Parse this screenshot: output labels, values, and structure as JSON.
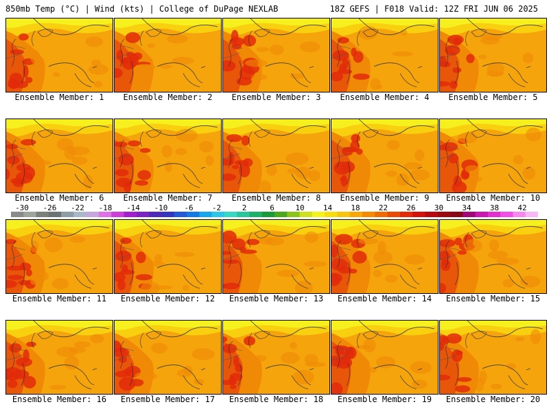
{
  "header": {
    "left": "850mb Temp (°C) | Wind (kts) | College of DuPage NEXLAB",
    "right": "18Z GEFS | F018 Valid: 12Z FRI JUN 06 2025"
  },
  "panels": [
    "Ensemble Member: 1",
    "Ensemble Member: 2",
    "Ensemble Member: 3",
    "Ensemble Member: 4",
    "Ensemble Member: 5",
    "Ensemble Member: 6",
    "Ensemble Member: 7",
    "Ensemble Member: 8",
    "Ensemble Member: 9",
    "Ensemble Member: 10",
    "Ensemble Member: 11",
    "Ensemble Member: 12",
    "Ensemble Member: 13",
    "Ensemble Member: 14",
    "Ensemble Member: 15",
    "Ensemble Member: 16",
    "Ensemble Member: 17",
    "Ensemble Member: 18",
    "Ensemble Member: 19",
    "Ensemble Member: 20"
  ],
  "colorbar": {
    "ticks": [
      "-30",
      "-26",
      "-22",
      "-18",
      "-14",
      "-10",
      "-6",
      "-2",
      "2",
      "6",
      "10",
      "14",
      "18",
      "22",
      "26",
      "30",
      "34",
      "38",
      "42"
    ],
    "colors": [
      "#8a8a8a",
      "#9fa49c",
      "#7a807a",
      "#6e7375",
      "#8f9da6",
      "#a9b7c6",
      "#c6a6de",
      "#e070e6",
      "#cc3fd6",
      "#a21fd0",
      "#7d22c4",
      "#4e2ab8",
      "#3436c0",
      "#2459d8",
      "#1479e4",
      "#17a6ec",
      "#2ec6e8",
      "#38d7c4",
      "#2cc49a",
      "#1cb068",
      "#1a9a3a",
      "#4ca81c",
      "#8cc41a",
      "#cfe01e",
      "#f6f21e",
      "#f8dc12",
      "#f8c40e",
      "#f8a608",
      "#f48a04",
      "#ee6c02",
      "#e84c04",
      "#e22a0a",
      "#d4120c",
      "#b80a0e",
      "#9c0a10",
      "#880818",
      "#a0087a",
      "#c818b0",
      "#e030d0",
      "#f050e8",
      "#f688f0",
      "#f8b8f6"
    ]
  }
}
